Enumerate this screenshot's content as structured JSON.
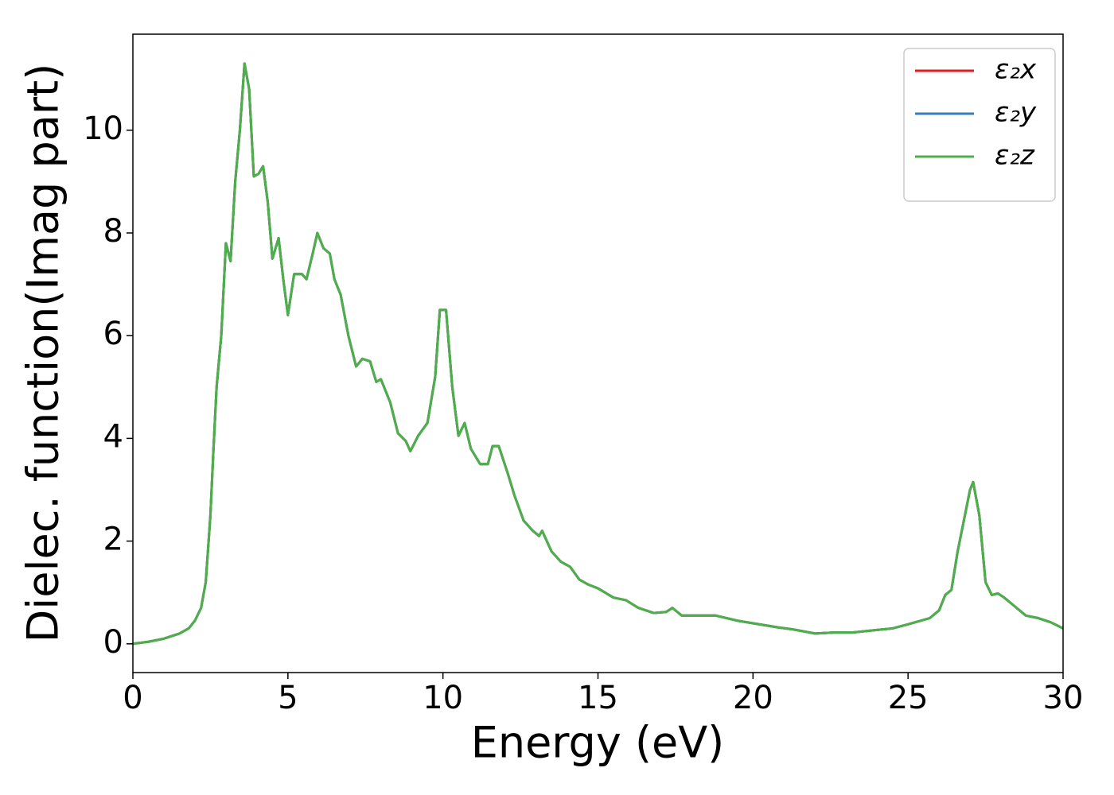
{
  "chart_data": {
    "type": "line",
    "xlabel": "Energy (eV)",
    "ylabel": "Dielec. function(Imag part)",
    "xlim": [
      0,
      30
    ],
    "xticks": [
      0,
      5,
      10,
      15,
      20,
      25,
      30
    ],
    "ylim": [
      -0.56,
      11.87
    ],
    "yticks": [
      0,
      2,
      4,
      6,
      8,
      10
    ],
    "grid": false,
    "legend": "upper right",
    "x": [
      0,
      0.5,
      1.0,
      1.5,
      1.8,
      2.0,
      2.2,
      2.35,
      2.5,
      2.6,
      2.7,
      2.85,
      3.0,
      3.15,
      3.3,
      3.45,
      3.6,
      3.75,
      3.9,
      4.05,
      4.2,
      4.35,
      4.5,
      4.7,
      4.85,
      5.0,
      5.2,
      5.45,
      5.6,
      5.8,
      5.95,
      6.15,
      6.35,
      6.5,
      6.7,
      6.95,
      7.2,
      7.4,
      7.65,
      7.85,
      8.0,
      8.3,
      8.55,
      8.8,
      8.95,
      9.2,
      9.5,
      9.75,
      9.9,
      10.1,
      10.3,
      10.5,
      10.7,
      10.9,
      11.2,
      11.45,
      11.6,
      11.8,
      12.1,
      12.3,
      12.6,
      12.9,
      13.1,
      13.2,
      13.5,
      13.8,
      14.1,
      14.4,
      14.7,
      15.0,
      15.5,
      15.9,
      16.3,
      16.8,
      17.2,
      17.4,
      17.7,
      18.2,
      18.8,
      19.5,
      20.0,
      20.8,
      21.3,
      22.0,
      22.6,
      23.2,
      24.0,
      24.5,
      25.0,
      25.7,
      26.0,
      26.2,
      26.4,
      26.6,
      26.8,
      27.0,
      27.1,
      27.3,
      27.5,
      27.7,
      27.9,
      28.1,
      28.5,
      28.8,
      29.2,
      29.6,
      30.0
    ],
    "series": [
      {
        "name": "ε₂x",
        "color": "#e41a1c",
        "values": [
          0,
          0.04,
          0.1,
          0.2,
          0.3,
          0.45,
          0.7,
          1.2,
          2.5,
          3.8,
          5.0,
          6.0,
          7.8,
          7.45,
          9.0,
          10.0,
          11.3,
          10.8,
          9.1,
          9.15,
          9.3,
          8.6,
          7.5,
          7.9,
          7.1,
          6.4,
          7.2,
          7.2,
          7.1,
          7.6,
          8.0,
          7.7,
          7.6,
          7.1,
          6.8,
          6.0,
          5.4,
          5.55,
          5.5,
          5.1,
          5.15,
          4.7,
          4.1,
          3.95,
          3.75,
          4.05,
          4.3,
          5.2,
          6.5,
          6.5,
          5.0,
          4.05,
          4.3,
          3.8,
          3.5,
          3.5,
          3.85,
          3.85,
          3.3,
          2.9,
          2.4,
          2.2,
          2.1,
          2.2,
          1.8,
          1.6,
          1.5,
          1.25,
          1.15,
          1.08,
          0.9,
          0.85,
          0.7,
          0.6,
          0.62,
          0.7,
          0.55,
          0.55,
          0.55,
          0.45,
          0.4,
          0.32,
          0.28,
          0.2,
          0.22,
          0.22,
          0.27,
          0.3,
          0.38,
          0.5,
          0.65,
          0.95,
          1.05,
          1.8,
          2.4,
          3.0,
          3.15,
          2.5,
          1.2,
          0.95,
          0.98,
          0.9,
          0.7,
          0.55,
          0.5,
          0.42,
          0.3
        ]
      },
      {
        "name": "ε₂y",
        "color": "#377eb8",
        "values": [
          0,
          0.04,
          0.1,
          0.2,
          0.3,
          0.45,
          0.7,
          1.2,
          2.5,
          3.8,
          5.0,
          6.0,
          7.8,
          7.45,
          9.0,
          10.0,
          11.3,
          10.8,
          9.1,
          9.15,
          9.3,
          8.6,
          7.5,
          7.9,
          7.1,
          6.4,
          7.2,
          7.2,
          7.1,
          7.6,
          8.0,
          7.7,
          7.6,
          7.1,
          6.8,
          6.0,
          5.4,
          5.55,
          5.5,
          5.1,
          5.15,
          4.7,
          4.1,
          3.95,
          3.75,
          4.05,
          4.3,
          5.2,
          6.5,
          6.5,
          5.0,
          4.05,
          4.3,
          3.8,
          3.5,
          3.5,
          3.85,
          3.85,
          3.3,
          2.9,
          2.4,
          2.2,
          2.1,
          2.2,
          1.8,
          1.6,
          1.5,
          1.25,
          1.15,
          1.08,
          0.9,
          0.85,
          0.7,
          0.6,
          0.62,
          0.7,
          0.55,
          0.55,
          0.55,
          0.45,
          0.4,
          0.32,
          0.28,
          0.2,
          0.22,
          0.22,
          0.27,
          0.3,
          0.38,
          0.5,
          0.65,
          0.95,
          1.05,
          1.8,
          2.4,
          3.0,
          3.15,
          2.5,
          1.2,
          0.95,
          0.98,
          0.9,
          0.7,
          0.55,
          0.5,
          0.42,
          0.3
        ]
      },
      {
        "name": "ε₂z",
        "color": "#4daf4a",
        "values": [
          0,
          0.04,
          0.1,
          0.2,
          0.3,
          0.45,
          0.7,
          1.2,
          2.5,
          3.8,
          5.0,
          6.0,
          7.8,
          7.45,
          9.0,
          10.0,
          11.3,
          10.8,
          9.1,
          9.15,
          9.3,
          8.6,
          7.5,
          7.9,
          7.1,
          6.4,
          7.2,
          7.2,
          7.1,
          7.6,
          8.0,
          7.7,
          7.6,
          7.1,
          6.8,
          6.0,
          5.4,
          5.55,
          5.5,
          5.1,
          5.15,
          4.7,
          4.1,
          3.95,
          3.75,
          4.05,
          4.3,
          5.2,
          6.5,
          6.5,
          5.0,
          4.05,
          4.3,
          3.8,
          3.5,
          3.5,
          3.85,
          3.85,
          3.3,
          2.9,
          2.4,
          2.2,
          2.1,
          2.2,
          1.8,
          1.6,
          1.5,
          1.25,
          1.15,
          1.08,
          0.9,
          0.85,
          0.7,
          0.6,
          0.62,
          0.7,
          0.55,
          0.55,
          0.55,
          0.45,
          0.4,
          0.32,
          0.28,
          0.2,
          0.22,
          0.22,
          0.27,
          0.3,
          0.38,
          0.5,
          0.65,
          0.95,
          1.05,
          1.8,
          2.4,
          3.0,
          3.15,
          2.5,
          1.2,
          0.95,
          0.98,
          0.9,
          0.7,
          0.55,
          0.5,
          0.42,
          0.3
        ]
      }
    ]
  }
}
